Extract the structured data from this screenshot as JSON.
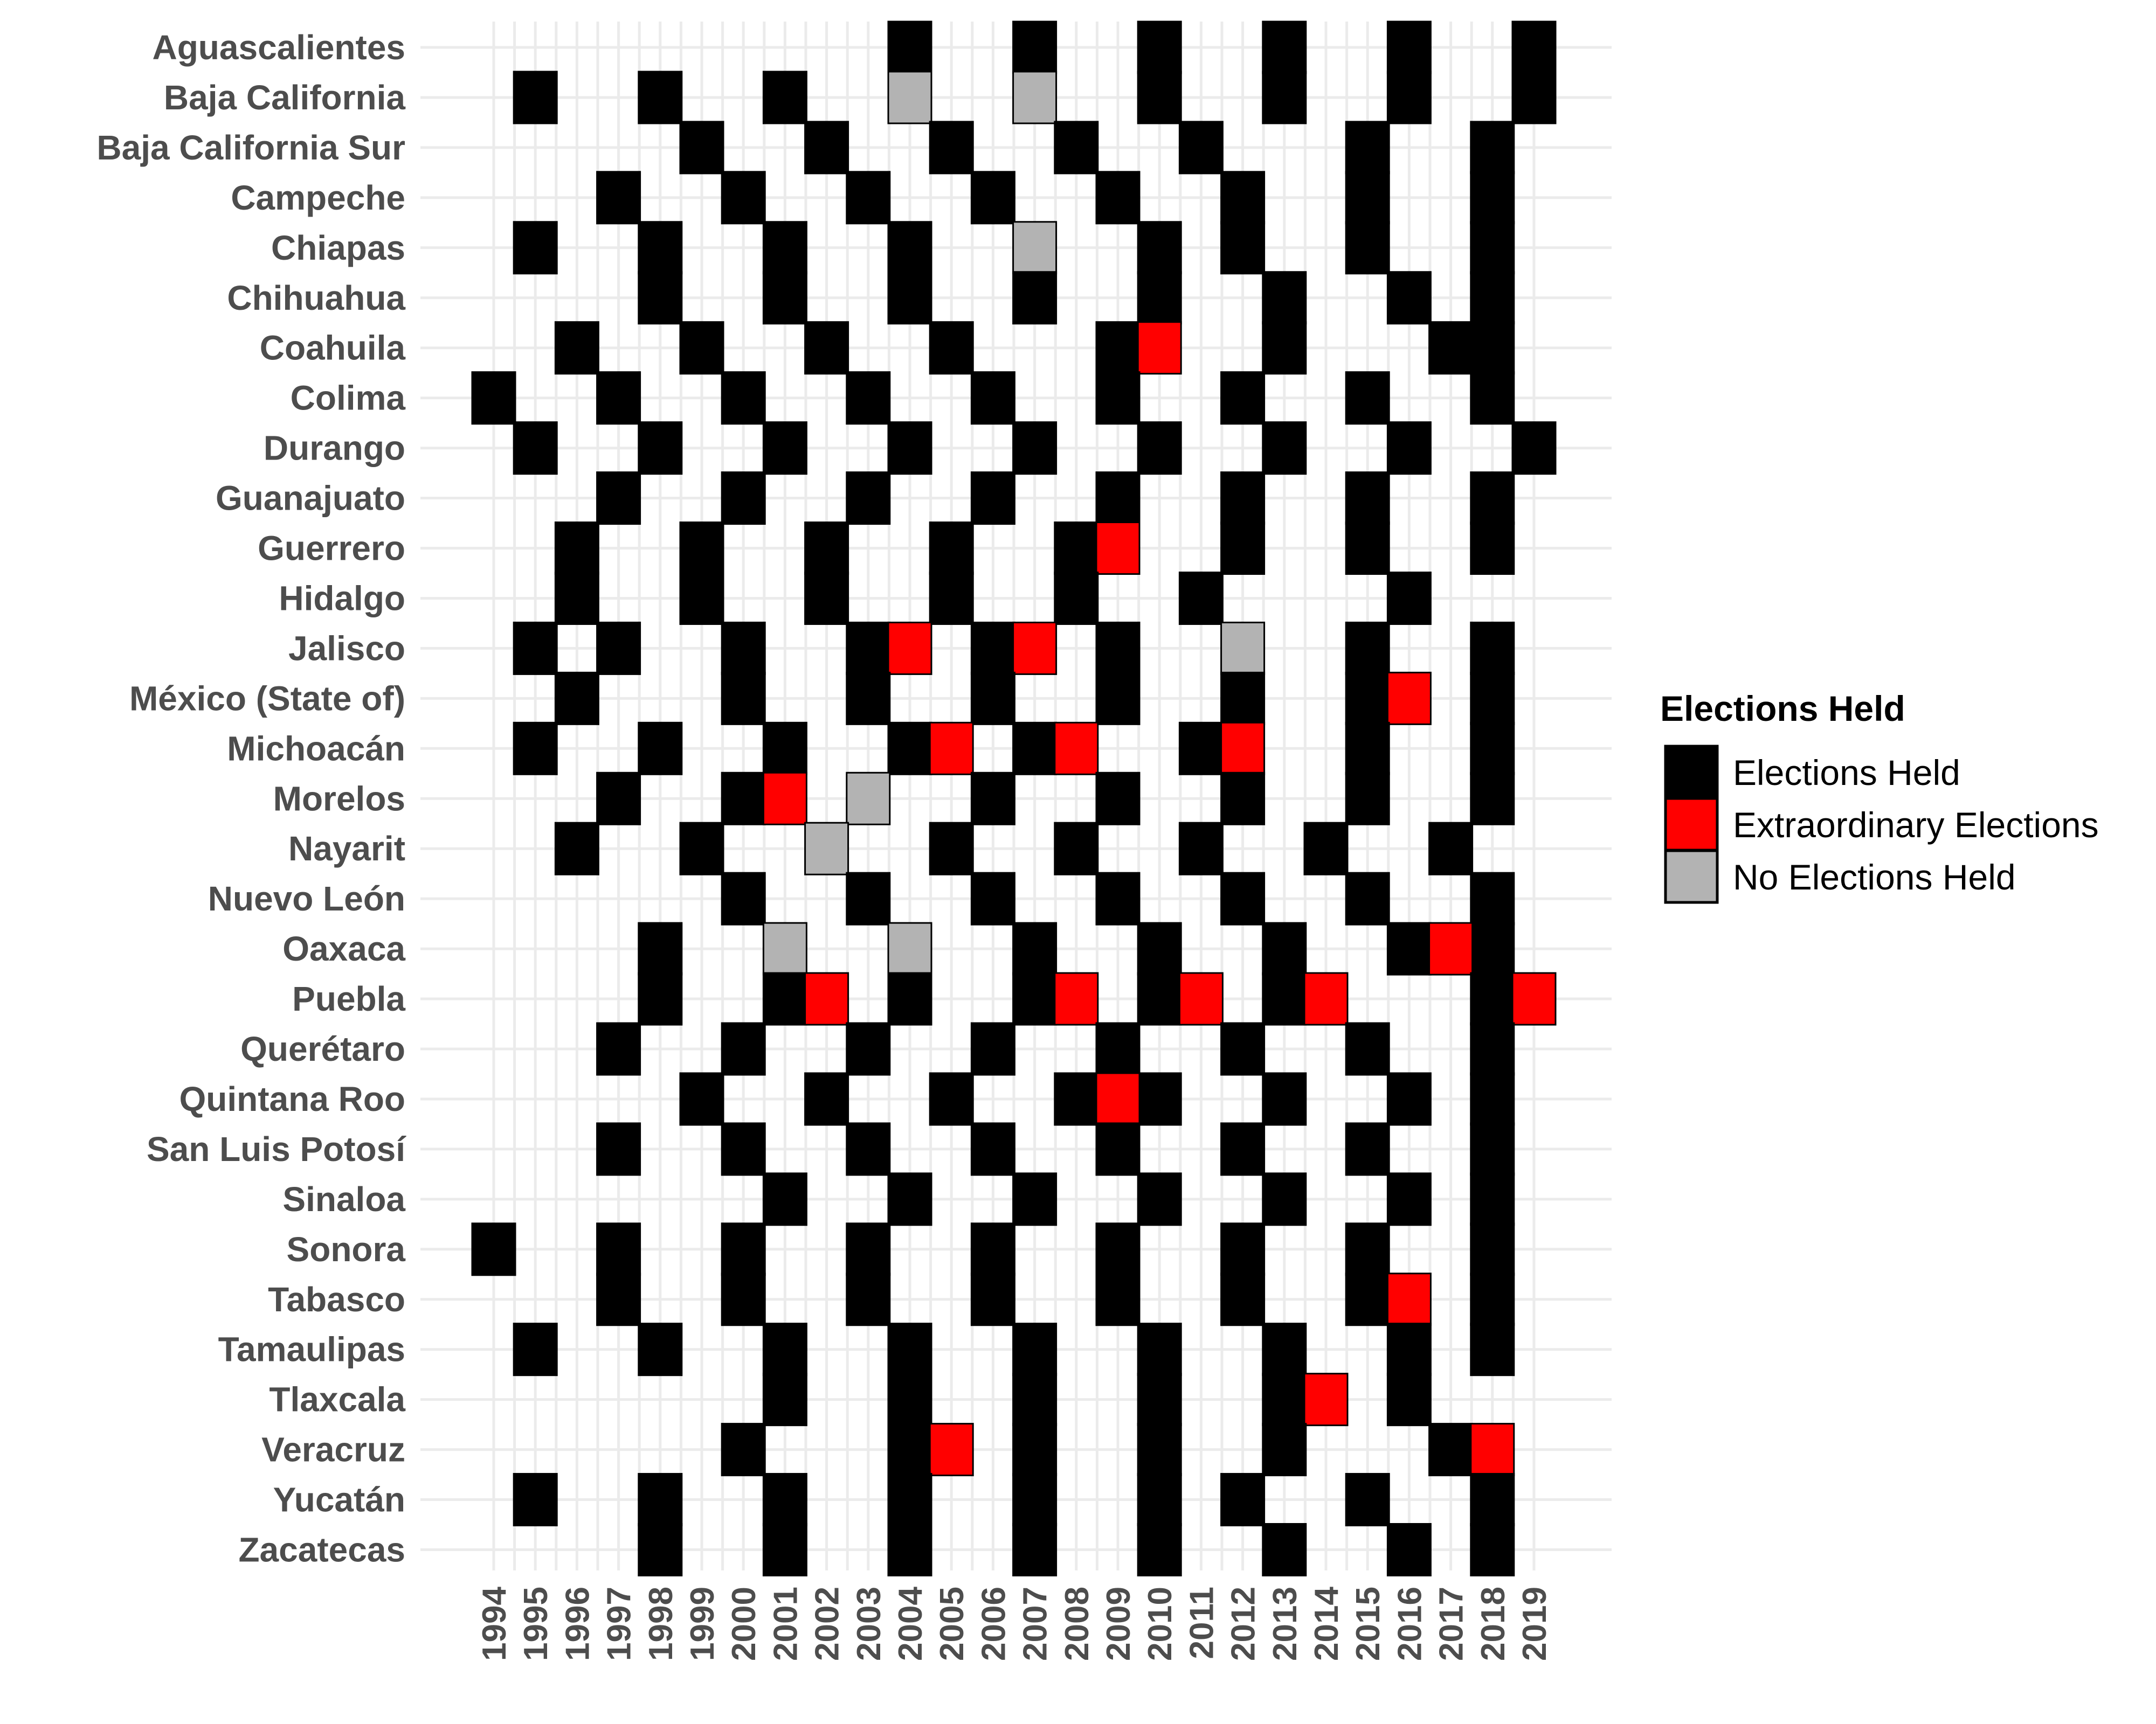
{
  "chart_data": {
    "type": "heatmap",
    "title": "",
    "xlabel": "",
    "ylabel": "",
    "years": [
      1994,
      1995,
      1996,
      1997,
      1998,
      1999,
      2000,
      2001,
      2002,
      2003,
      2004,
      2005,
      2006,
      2007,
      2008,
      2009,
      2010,
      2011,
      2012,
      2013,
      2014,
      2015,
      2016,
      2017,
      2018,
      2019
    ],
    "states": [
      "Aguascalientes",
      "Baja California",
      "Baja California Sur",
      "Campeche",
      "Chiapas",
      "Chihuahua",
      "Coahuila",
      "Colima",
      "Durango",
      "Guanajuato",
      "Guerrero",
      "Hidalgo",
      "Jalisco",
      "México (State of)",
      "Michoacán",
      "Morelos",
      "Nayarit",
      "Nuevo León",
      "Oaxaca",
      "Puebla",
      "Querétaro",
      "Quintana Roo",
      "San Luis Potosí",
      "Sinaloa",
      "Sonora",
      "Tabasco",
      "Tamaulipas",
      "Tlaxcala",
      "Veracruz",
      "Yucatán",
      "Zacatecas"
    ],
    "legend": {
      "title": "Elections Held",
      "position": "right",
      "entries": [
        {
          "key": "held",
          "label": "Elections Held",
          "color": "#000000"
        },
        {
          "key": "extra",
          "label": "Extraordinary Elections",
          "color": "#ff0000"
        },
        {
          "key": "none",
          "label": "No Elections Held",
          "color": "#b3b3b3"
        }
      ]
    },
    "cells": {
      "Aguascalientes": {
        "held": [
          2004,
          2007,
          2010,
          2013,
          2016,
          2019
        ],
        "extra": [],
        "none": []
      },
      "Baja California": {
        "held": [
          1995,
          1998,
          2001,
          2010,
          2013,
          2016,
          2019
        ],
        "extra": [],
        "none": [
          2004,
          2007
        ]
      },
      "Baja California Sur": {
        "held": [
          1999,
          2002,
          2005,
          2008,
          2011,
          2015,
          2018
        ],
        "extra": [],
        "none": []
      },
      "Campeche": {
        "held": [
          1997,
          2000,
          2003,
          2006,
          2009,
          2012,
          2015,
          2018
        ],
        "extra": [],
        "none": []
      },
      "Chiapas": {
        "held": [
          1995,
          1998,
          2001,
          2004,
          2010,
          2012,
          2015,
          2018
        ],
        "extra": [],
        "none": [
          2007
        ]
      },
      "Chihuahua": {
        "held": [
          1998,
          2001,
          2004,
          2007,
          2010,
          2013,
          2016,
          2018
        ],
        "extra": [],
        "none": []
      },
      "Coahuila": {
        "held": [
          1996,
          1999,
          2002,
          2005,
          2009,
          2013,
          2017,
          2018
        ],
        "extra": [
          2010
        ],
        "none": []
      },
      "Colima": {
        "held": [
          1994,
          1997,
          2000,
          2003,
          2006,
          2009,
          2012,
          2015,
          2018
        ],
        "extra": [],
        "none": []
      },
      "Durango": {
        "held": [
          1995,
          1998,
          2001,
          2004,
          2007,
          2010,
          2013,
          2016,
          2019
        ],
        "extra": [],
        "none": []
      },
      "Guanajuato": {
        "held": [
          1997,
          2000,
          2003,
          2006,
          2009,
          2012,
          2015,
          2018
        ],
        "extra": [],
        "none": []
      },
      "Guerrero": {
        "held": [
          1996,
          1999,
          2002,
          2005,
          2008,
          2012,
          2015,
          2018
        ],
        "extra": [
          2009
        ],
        "none": []
      },
      "Hidalgo": {
        "held": [
          1996,
          1999,
          2002,
          2005,
          2008,
          2011,
          2016
        ],
        "extra": [],
        "none": []
      },
      "Jalisco": {
        "held": [
          1995,
          1997,
          2000,
          2003,
          2006,
          2009,
          2015,
          2018
        ],
        "extra": [
          2004,
          2007
        ],
        "none": [
          2012
        ]
      },
      "México (State of)": {
        "held": [
          1996,
          2000,
          2003,
          2006,
          2009,
          2012,
          2015,
          2018
        ],
        "extra": [
          2016
        ],
        "none": []
      },
      "Michoacán": {
        "held": [
          1995,
          1998,
          2001,
          2004,
          2007,
          2011,
          2015,
          2018
        ],
        "extra": [
          2005,
          2008,
          2012
        ],
        "none": []
      },
      "Morelos": {
        "held": [
          1997,
          2000,
          2006,
          2009,
          2012,
          2015,
          2018
        ],
        "extra": [
          2001
        ],
        "none": [
          2003
        ]
      },
      "Nayarit": {
        "held": [
          1996,
          1999,
          2005,
          2008,
          2011,
          2014,
          2017
        ],
        "extra": [],
        "none": [
          2002
        ]
      },
      "Nuevo León": {
        "held": [
          2000,
          2003,
          2006,
          2009,
          2012,
          2015,
          2018
        ],
        "extra": [],
        "none": []
      },
      "Oaxaca": {
        "held": [
          1998,
          2007,
          2010,
          2013,
          2016,
          2018
        ],
        "extra": [
          2017
        ],
        "none": [
          2001,
          2004
        ]
      },
      "Puebla": {
        "held": [
          1998,
          2001,
          2004,
          2007,
          2010,
          2013,
          2018
        ],
        "extra": [
          2002,
          2008,
          2011,
          2014,
          2019
        ],
        "none": []
      },
      "Querétaro": {
        "held": [
          1997,
          2000,
          2003,
          2006,
          2009,
          2012,
          2015,
          2018
        ],
        "extra": [],
        "none": []
      },
      "Quintana Roo": {
        "held": [
          1999,
          2002,
          2005,
          2008,
          2010,
          2013,
          2016,
          2018
        ],
        "extra": [
          2009
        ],
        "none": []
      },
      "San Luis Potosí": {
        "held": [
          1997,
          2000,
          2003,
          2006,
          2009,
          2012,
          2015,
          2018
        ],
        "extra": [],
        "none": []
      },
      "Sinaloa": {
        "held": [
          2001,
          2004,
          2007,
          2010,
          2013,
          2016,
          2018
        ],
        "extra": [],
        "none": []
      },
      "Sonora": {
        "held": [
          1994,
          1997,
          2000,
          2003,
          2006,
          2009,
          2012,
          2015,
          2018
        ],
        "extra": [],
        "none": []
      },
      "Tabasco": {
        "held": [
          1997,
          2000,
          2003,
          2006,
          2009,
          2012,
          2015,
          2018
        ],
        "extra": [
          2016
        ],
        "none": []
      },
      "Tamaulipas": {
        "held": [
          1995,
          1998,
          2001,
          2004,
          2007,
          2010,
          2013,
          2016,
          2018
        ],
        "extra": [],
        "none": []
      },
      "Tlaxcala": {
        "held": [
          2001,
          2004,
          2007,
          2010,
          2013,
          2016
        ],
        "extra": [
          2014
        ],
        "none": []
      },
      "Veracruz": {
        "held": [
          2000,
          2004,
          2007,
          2010,
          2013,
          2017
        ],
        "extra": [
          2005,
          2018
        ],
        "none": []
      },
      "Yucatán": {
        "held": [
          1995,
          1998,
          2001,
          2004,
          2007,
          2010,
          2012,
          2015,
          2018
        ],
        "extra": [],
        "none": []
      },
      "Zacatecas": {
        "held": [
          1998,
          2001,
          2004,
          2007,
          2010,
          2013,
          2016,
          2018
        ],
        "extra": [],
        "none": []
      }
    }
  }
}
